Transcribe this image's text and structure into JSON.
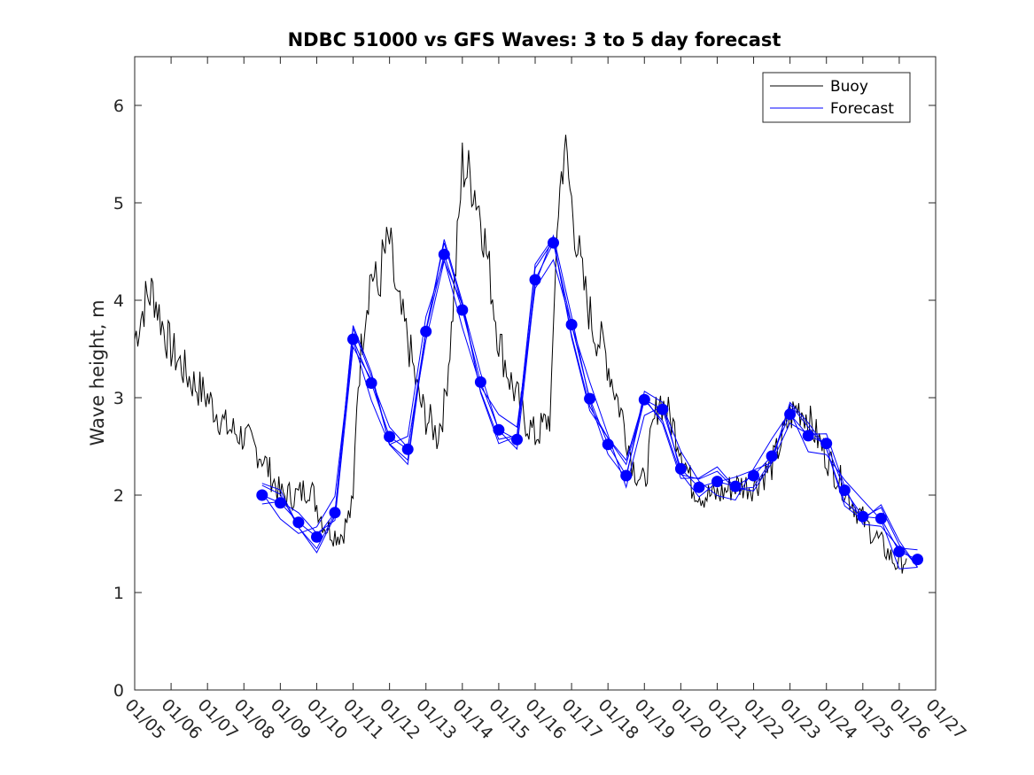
{
  "chart_data": {
    "type": "line",
    "title": "NDBC 51000 vs GFS Waves: 3 to 5 day forecast",
    "xlabel": "",
    "ylabel": "Wave height, m",
    "xlim": [
      0,
      22
    ],
    "ylim": [
      0,
      6.5
    ],
    "y_ticks": [
      0,
      1,
      2,
      3,
      4,
      5,
      6
    ],
    "x_ticks": [
      0,
      1,
      2,
      3,
      4,
      5,
      6,
      7,
      8,
      9,
      10,
      11,
      12,
      13,
      14,
      15,
      16,
      17,
      18,
      19,
      20,
      21,
      22
    ],
    "x_tick_labels": [
      "01/05",
      "01/06",
      "01/07",
      "01/08",
      "01/09",
      "01/10",
      "01/11",
      "01/12",
      "01/13",
      "01/14",
      "01/15",
      "01/16",
      "01/17",
      "01/18",
      "01/19",
      "01/20",
      "01/21",
      "01/22",
      "01/23",
      "01/24",
      "01/25",
      "01/26",
      "01/27"
    ],
    "legend": {
      "placement": "top-right",
      "entries": [
        {
          "label": "Buoy",
          "color": "#000000"
        },
        {
          "label": "Forecast",
          "color": "#0000ff"
        }
      ]
    },
    "series": [
      {
        "name": "Buoy",
        "color": "#000000",
        "x": [
          0,
          0.3,
          0.5,
          0.8,
          1.0,
          1.5,
          2.0,
          2.5,
          3.0,
          3.5,
          4.0,
          4.5,
          4.8,
          5.0,
          5.2,
          5.5,
          5.7,
          6.0,
          6.1,
          6.3,
          6.5,
          6.7,
          6.8,
          7.0,
          7.2,
          7.5,
          7.8,
          8.0,
          8.2,
          8.3,
          8.5,
          8.7,
          8.9,
          9.0,
          9.3,
          9.5,
          9.7,
          10.0,
          10.3,
          10.5,
          10.7,
          11.0,
          11.2,
          11.4,
          11.5,
          11.6,
          11.8,
          12.0,
          12.3,
          12.6,
          12.9,
          13.1,
          13.4,
          13.7,
          14.0,
          14.2,
          14.4,
          14.7,
          15.0,
          15.3,
          15.6,
          16.0,
          16.5,
          17.0,
          17.5,
          17.8,
          18.0,
          18.2,
          18.4,
          18.6,
          18.8,
          19.0,
          19.3,
          19.6,
          20.0,
          20.3,
          20.6,
          20.9,
          21.0,
          21.2
        ],
        "y": [
          3.6,
          4.0,
          4.1,
          3.7,
          3.5,
          3.2,
          3.0,
          2.7,
          2.6,
          2.4,
          2.0,
          2.0,
          2.1,
          1.9,
          1.7,
          1.6,
          1.6,
          1.9,
          3.0,
          3.8,
          4.3,
          4.1,
          4.4,
          4.6,
          4.0,
          3.6,
          3.0,
          2.8,
          2.7,
          2.6,
          2.9,
          3.7,
          4.8,
          5.4,
          5.2,
          4.9,
          4.4,
          3.6,
          3.2,
          3.0,
          2.8,
          2.6,
          2.7,
          2.8,
          3.5,
          4.8,
          5.6,
          5.0,
          4.2,
          3.7,
          3.5,
          3.2,
          2.8,
          2.3,
          2.1,
          2.6,
          3.0,
          2.8,
          2.5,
          2.1,
          2.0,
          2.0,
          2.1,
          2.1,
          2.3,
          2.6,
          2.8,
          2.9,
          2.85,
          2.7,
          2.55,
          2.4,
          2.2,
          2.0,
          1.75,
          1.6,
          1.45,
          1.3,
          1.3,
          1.35
        ]
      },
      {
        "name": "Forecast",
        "color": "#0000ff",
        "x": [
          3.5,
          4.0,
          4.5,
          5.0,
          5.5,
          6.0,
          6.5,
          7.0,
          7.5,
          8.0,
          8.5,
          9.0,
          9.5,
          10.0,
          10.5,
          11.0,
          11.5,
          12.0,
          12.5,
          13.0,
          13.5,
          14.0,
          14.5,
          15.0,
          15.5,
          16.0,
          16.5,
          17.0,
          17.5,
          18.0,
          18.5,
          19.0,
          19.5,
          20.0,
          20.5,
          21.0,
          21.5
        ],
        "y": [
          2.0,
          1.92,
          1.72,
          1.57,
          1.82,
          3.6,
          3.15,
          2.6,
          2.47,
          3.68,
          4.47,
          3.9,
          3.16,
          2.67,
          2.57,
          4.21,
          4.59,
          3.75,
          2.99,
          2.52,
          2.2,
          2.98,
          2.88,
          2.27,
          2.08,
          2.14,
          2.09,
          2.2,
          2.4,
          2.83,
          2.61,
          2.53,
          2.05,
          1.78,
          1.76,
          1.42,
          1.34
        ]
      }
    ]
  }
}
